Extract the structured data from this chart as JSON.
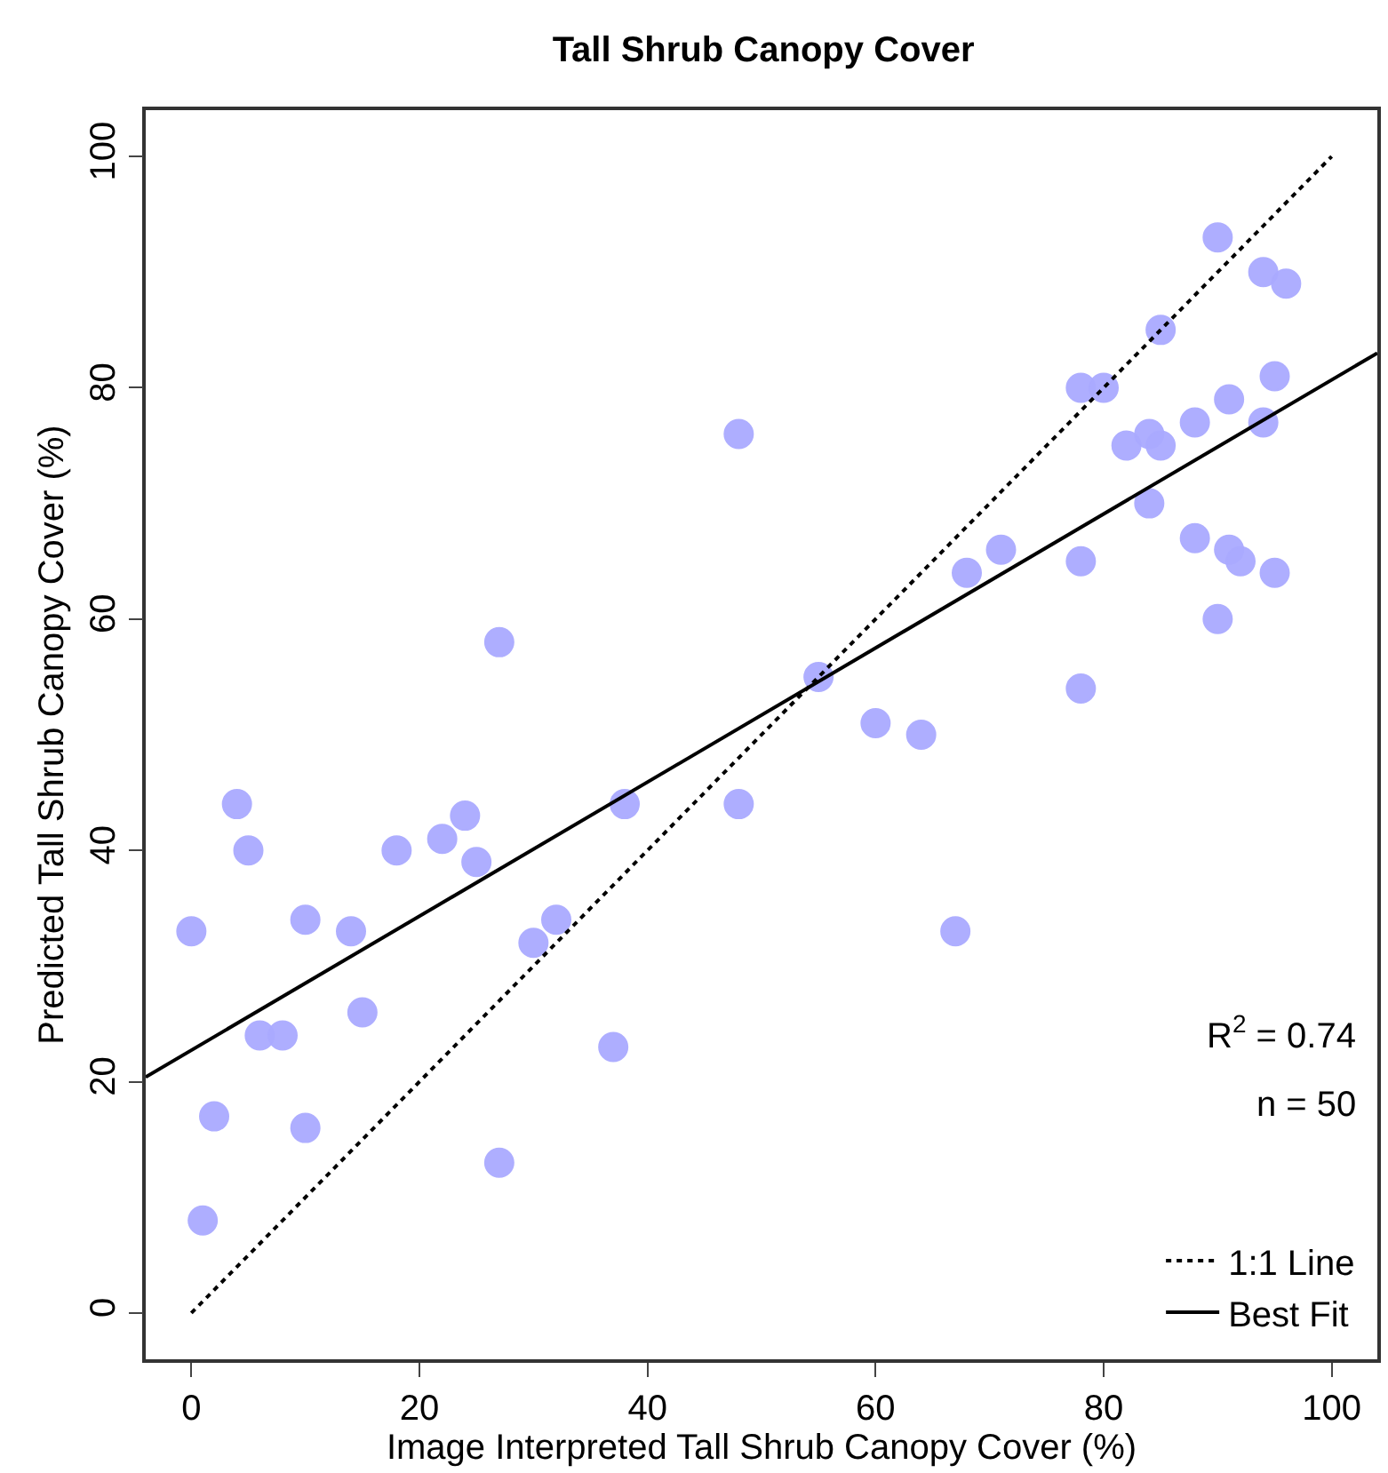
{
  "chart_data": {
    "type": "scatter",
    "title": "Tall Shrub Canopy Cover",
    "xlabel": "Image Interpreted Tall Shrub Canopy Cover (%)",
    "ylabel": "Predicted Tall Shrub Canopy Cover (%)",
    "x": [
      0,
      1,
      2,
      4,
      5,
      6,
      8,
      10,
      10,
      14,
      15,
      18,
      22,
      24,
      25,
      27,
      27,
      30,
      32,
      37,
      38,
      48,
      48,
      55,
      60,
      64,
      67,
      68,
      71,
      78,
      78,
      78,
      80,
      82,
      84,
      84,
      85,
      85,
      88,
      88,
      90,
      90,
      91,
      91,
      92,
      94,
      94,
      95,
      95,
      96
    ],
    "series": [
      {
        "color": "#aaaaff",
        "marker": "circle",
        "values": [
          33,
          8,
          17,
          44,
          40,
          24,
          24,
          34,
          16,
          33,
          26,
          40,
          41,
          43,
          39,
          58,
          13,
          32,
          34,
          23,
          44,
          76,
          44,
          55,
          51,
          50,
          33,
          64,
          66,
          80,
          65,
          54,
          80,
          75,
          76,
          70,
          85,
          75,
          77,
          67,
          93,
          60,
          79,
          66,
          65,
          90,
          77,
          81,
          64,
          89
        ]
      },
      {
        "type": "line",
        "name": "1:1 Line",
        "color": "#000000",
        "line_style": "dotted",
        "marker": "none",
        "x": [
          0,
          100
        ],
        "values": [
          0,
          100
        ]
      },
      {
        "type": "line",
        "name": "Best Fit",
        "color": "#000000",
        "line_style": "solid",
        "marker": "none",
        "x": [
          -4,
          104
        ],
        "values": [
          20.4,
          83.0
        ]
      }
    ],
    "annotations": [
      "R$^{2}$ = 0.74",
      "n = 50"
    ],
    "xlim": [
      -4,
      104
    ],
    "ylim": [
      -4,
      104
    ],
    "xticks": [
      0,
      20,
      40,
      60,
      80,
      100
    ],
    "yticks": [
      0,
      20,
      40,
      60,
      80,
      100
    ],
    "legend": "bottom right"
  }
}
